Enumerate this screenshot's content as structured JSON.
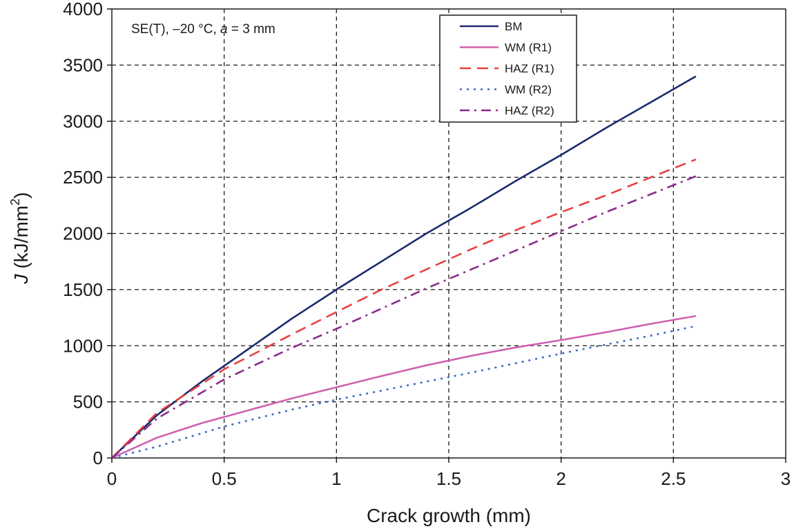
{
  "chart_data": {
    "type": "line",
    "title": "",
    "annotation": {
      "prefix": "SE(T), –20 °C, ",
      "var": "a",
      "suffix": " = 3 mm"
    },
    "xlabel": "Crack growth (mm)",
    "ylabel": {
      "var": "J",
      "unit_prefix": " (kJ/mm",
      "unit_sup": "2",
      "unit_suffix": ")"
    },
    "xlim": [
      0,
      3
    ],
    "ylim": [
      0,
      4000
    ],
    "xticks": [
      0,
      0.5,
      1,
      1.5,
      2,
      2.5,
      3
    ],
    "xtick_labels": [
      "0",
      "0.5",
      "1",
      "1.5",
      "2",
      "2.5",
      "3"
    ],
    "yticks": [
      0,
      500,
      1000,
      1500,
      2000,
      2500,
      3000,
      3500,
      4000
    ],
    "ytick_labels": [
      "0",
      "500",
      "1000",
      "1500",
      "2000",
      "2500",
      "3000",
      "3500",
      "4000"
    ],
    "grid": true,
    "legend_position": "top-right",
    "series": [
      {
        "name": "BM",
        "color": "#1a2a6c",
        "style": "solid",
        "x": [
          0,
          0.2,
          0.4,
          0.5,
          0.6,
          0.8,
          1.0,
          1.2,
          1.4,
          1.6,
          1.8,
          2.0,
          2.2,
          2.4,
          2.6
        ],
        "y": [
          0,
          380,
          680,
          820,
          960,
          1240,
          1500,
          1750,
          2000,
          2230,
          2470,
          2700,
          2940,
          3170,
          3400
        ]
      },
      {
        "name": "WM (R1)",
        "color": "#d060b0",
        "style": "solid",
        "x": [
          0,
          0.2,
          0.4,
          0.6,
          0.8,
          1.0,
          1.2,
          1.4,
          1.6,
          1.8,
          2.0,
          2.2,
          2.4,
          2.6
        ],
        "y": [
          0,
          180,
          310,
          420,
          530,
          630,
          730,
          825,
          910,
          985,
          1050,
          1120,
          1195,
          1265
        ]
      },
      {
        "name": "HAZ (R1)",
        "color": "#e84040",
        "style": "dash",
        "x": [
          0,
          0.2,
          0.5,
          0.8,
          1.0,
          1.2,
          1.4,
          1.6,
          1.8,
          2.0,
          2.2,
          2.4,
          2.6
        ],
        "y": [
          0,
          400,
          790,
          1100,
          1300,
          1500,
          1680,
          1860,
          2030,
          2190,
          2340,
          2500,
          2660
        ]
      },
      {
        "name": "WM (R2)",
        "color": "#3a6ac8",
        "style": "dot",
        "x": [
          0,
          0.2,
          0.5,
          0.8,
          1.0,
          1.2,
          1.4,
          1.6,
          1.8,
          2.0,
          2.2,
          2.4,
          2.6
        ],
        "y": [
          0,
          100,
          280,
          430,
          520,
          600,
          680,
          760,
          845,
          930,
          1010,
          1090,
          1175
        ]
      },
      {
        "name": "HAZ (R2)",
        "color": "#8a2a8a",
        "style": "dashdot",
        "x": [
          0,
          0.2,
          0.5,
          0.8,
          1.0,
          1.2,
          1.4,
          1.6,
          1.8,
          2.0,
          2.2,
          2.4,
          2.6
        ],
        "y": [
          0,
          350,
          700,
          980,
          1150,
          1330,
          1510,
          1680,
          1850,
          2020,
          2190,
          2350,
          2510
        ]
      }
    ]
  }
}
